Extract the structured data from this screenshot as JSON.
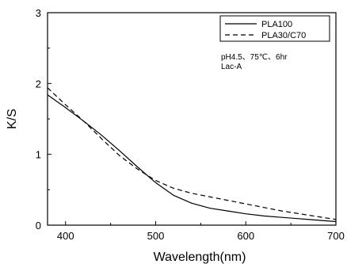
{
  "chart_data": {
    "type": "line",
    "xlabel": "Wavelength(nm)",
    "ylabel": "K/S",
    "xlim": [
      380,
      700
    ],
    "ylim": [
      0,
      3
    ],
    "x_ticks": [
      400,
      500,
      600,
      700
    ],
    "y_ticks": [
      0,
      1,
      2,
      3
    ],
    "grid": false,
    "legend_position": "top-right",
    "annotations": [
      "pH4.5、75℃、6hr",
      "Lac-A"
    ],
    "series": [
      {
        "name": "PLA100",
        "style": "solid",
        "color": "#000000",
        "x": [
          380,
          400,
          420,
          440,
          460,
          480,
          500,
          520,
          540,
          560,
          580,
          600,
          620,
          640,
          660,
          680,
          700
        ],
        "y": [
          1.84,
          1.66,
          1.47,
          1.27,
          1.05,
          0.82,
          0.6,
          0.42,
          0.31,
          0.24,
          0.2,
          0.16,
          0.13,
          0.11,
          0.09,
          0.07,
          0.05
        ]
      },
      {
        "name": "PLA30/C70",
        "style": "dashed",
        "color": "#000000",
        "x": [
          380,
          400,
          420,
          440,
          460,
          480,
          500,
          520,
          540,
          560,
          580,
          600,
          620,
          640,
          660,
          680,
          700
        ],
        "y": [
          1.94,
          1.7,
          1.47,
          1.22,
          0.98,
          0.79,
          0.63,
          0.52,
          0.45,
          0.4,
          0.35,
          0.3,
          0.25,
          0.2,
          0.16,
          0.12,
          0.08
        ]
      }
    ]
  }
}
